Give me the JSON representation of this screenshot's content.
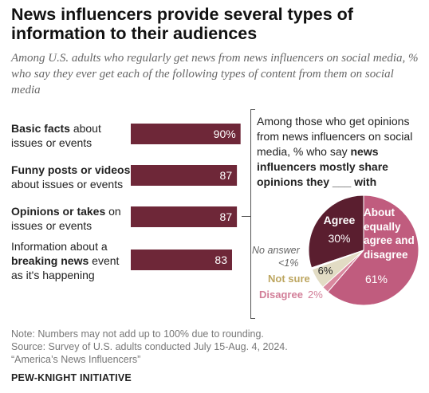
{
  "title": "News influencers provide several types of information to their audiences",
  "subtitle": "Among U.S. adults who regularly get news from news influencers on social media, % who say they ever get each of the following types of content from them on social media",
  "bar_labels": [
    {
      "bold": "Basic facts",
      "rest_after": " about issues or events",
      "pre": ""
    },
    {
      "bold": "Funny posts or videos",
      "rest_after": " about issues or events",
      "pre": ""
    },
    {
      "bold": "Opinions or takes",
      "rest_after": " on issues or events",
      "pre": ""
    },
    {
      "pre": "Information about a ",
      "bold": "breaking news",
      "rest_after": " event as it's happening"
    }
  ],
  "pie_question": {
    "pre": "Among those who get opinions from news influencers on social media, % who say ",
    "bold": "news influencers mostly share opinions they ___ with"
  },
  "pie_labels": {
    "agree": "Agree",
    "agree_value": "30%",
    "about_equally": "About equally agree and disagree",
    "about_equally_value": "61%",
    "not_sure": "Not sure",
    "not_sure_value": "6%",
    "disagree": "Disagree",
    "disagree_value": "2%",
    "no_answer": "No answer",
    "no_answer_value": "<1%"
  },
  "colors": {
    "bar": "#6e2738",
    "agree": "#5a1e2f",
    "about_equally": "#c05c7e",
    "not_sure": "#e2dcc4",
    "disagree": "#d9899f",
    "no_answer": "#ffffff",
    "not_sure_text": "#bda660",
    "disagree_text": "#d27e98"
  },
  "chart_data": [
    {
      "type": "bar",
      "orientation": "horizontal",
      "categories": [
        "Basic facts about issues or events",
        "Funny posts or videos about issues or events",
        "Opinions or takes on issues or events",
        "Information about a breaking news event as it's happening"
      ],
      "values": [
        90,
        87,
        87,
        83
      ],
      "value_labels": [
        "90%",
        "87",
        "87",
        "83"
      ],
      "xlim": [
        0,
        100
      ]
    },
    {
      "type": "pie",
      "labels": [
        "Agree",
        "About equally agree and disagree",
        "Disagree",
        "Not sure",
        "No answer"
      ],
      "values": [
        30,
        61,
        2,
        6,
        0.5
      ],
      "value_labels": [
        "30%",
        "61%",
        "2%",
        "6%",
        "<1%"
      ]
    }
  ],
  "notes": {
    "note": "Note: Numbers may not add up to 100% due to rounding.",
    "source": "Source: Survey of U.S. adults conducted July 15-Aug. 4, 2024.",
    "report": "“America’s News Influencers”"
  },
  "brand": "PEW-KNIGHT INITIATIVE"
}
